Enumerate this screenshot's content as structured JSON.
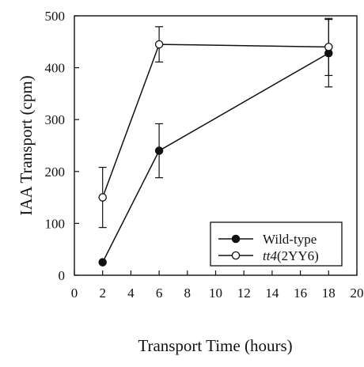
{
  "chart_data": {
    "type": "line",
    "title": "",
    "xlabel": "Transport Time (hours)",
    "ylabel": "IAA Transport (cpm)",
    "xlim": [
      0,
      20
    ],
    "ylim": [
      0,
      500
    ],
    "xticks": [
      0,
      2,
      4,
      6,
      8,
      10,
      12,
      14,
      16,
      18,
      20
    ],
    "yticks": [
      0,
      100,
      200,
      300,
      400,
      500
    ],
    "grid": false,
    "legend_position": "bottom-right",
    "series": [
      {
        "name": "Wild-type",
        "marker": "filled-circle",
        "color": "#111111",
        "x": [
          2,
          6,
          18
        ],
        "y": [
          25,
          240,
          428
        ],
        "error": [
          0,
          52,
          65
        ]
      },
      {
        "name": "tt4(2YY6)",
        "name_parts": {
          "italic": "tt4",
          "normal": "(2YY6)"
        },
        "marker": "open-circle",
        "color": "#111111",
        "x": [
          2,
          6,
          18
        ],
        "y": [
          150,
          445,
          440
        ],
        "error": [
          58,
          34,
          55
        ]
      }
    ]
  }
}
